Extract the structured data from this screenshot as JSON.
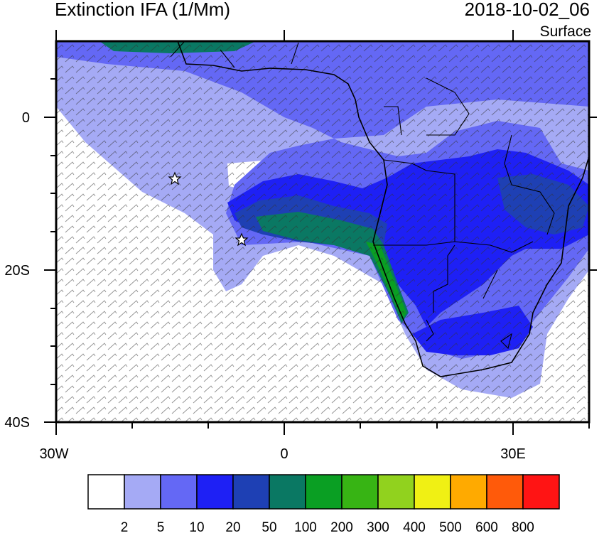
{
  "header": {
    "title": "Extinction IFA (1/Mm)",
    "datetime": "2018-10-02_06",
    "level": "Surface"
  },
  "axes": {
    "lat_labels": [
      "0",
      "20S",
      "40S"
    ],
    "lon_labels": [
      "30W",
      "0",
      "30E"
    ]
  },
  "colorbar": {
    "colors": [
      "#ffffff",
      "#a5aaf5",
      "#6468f5",
      "#1e20f5",
      "#1e40b4",
      "#0a7863",
      "#0a9f23",
      "#37b414",
      "#91d21e",
      "#f0f014",
      "#ffaa00",
      "#ff5a0a",
      "#ff1414"
    ],
    "tick_labels": [
      "2",
      "5",
      "10",
      "20",
      "50",
      "100",
      "200",
      "300",
      "400",
      "500",
      "600",
      "800"
    ]
  },
  "markers": [
    {
      "name": "station-star-west",
      "lon": -14.4,
      "lat": -7.9
    },
    {
      "name": "station-star-east",
      "lon": -5.6,
      "lat": -15.9
    }
  ],
  "plume": {
    "peak_region": "Namibian coast",
    "peak_class": "100-200"
  }
}
